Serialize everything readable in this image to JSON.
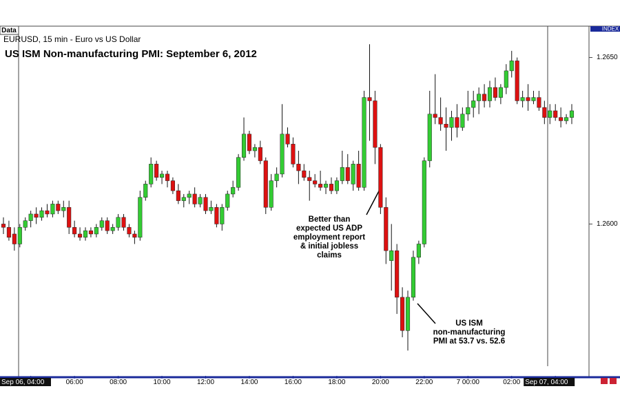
{
  "chart_data": {
    "type": "candlestick",
    "title": "US ISM Non-manufacturing PMI: September 6, 2012",
    "subtitle": "EURUSD, 15 min - Euro vs US Dollar",
    "data_tab": "Data",
    "axis_tab": "INDEX",
    "categories": [
      null,
      null,
      null,
      null,
      null,
      "Sep 06, 04:00",
      null,
      null,
      null,
      null,
      null,
      null,
      null,
      "06:00",
      null,
      null,
      null,
      null,
      null,
      null,
      null,
      "08:00",
      null,
      null,
      null,
      null,
      null,
      null,
      null,
      "10:00",
      null,
      null,
      null,
      null,
      null,
      null,
      null,
      "12:00",
      null,
      null,
      null,
      null,
      null,
      null,
      null,
      "14:00",
      null,
      null,
      null,
      null,
      null,
      null,
      null,
      "16:00",
      null,
      null,
      null,
      null,
      null,
      null,
      null,
      "18:00",
      null,
      null,
      null,
      null,
      null,
      null,
      null,
      "20:00",
      null,
      null,
      null,
      null,
      null,
      null,
      null,
      "22:00",
      null,
      null,
      null,
      null,
      null,
      null,
      null,
      "7 00:00",
      null,
      null,
      null,
      null,
      null,
      null,
      null,
      "02:00",
      null,
      null,
      null,
      null,
      null,
      null,
      null,
      "Sep 07, 04:00",
      null,
      null,
      null
    ],
    "open": [
      1.26,
      1.2599,
      1.2597,
      1.2594,
      1.2599,
      1.2601,
      1.2603,
      1.2602,
      1.2604,
      1.2603,
      1.2606,
      1.2604,
      1.2605,
      1.2599,
      1.2597,
      1.2596,
      1.2598,
      1.2597,
      1.2599,
      1.2601,
      1.2598,
      1.2599,
      1.2602,
      1.2599,
      1.2597,
      1.2596,
      1.2608,
      1.2612,
      1.2618,
      1.2614,
      1.2615,
      1.2613,
      1.261,
      1.2607,
      1.2608,
      1.2609,
      1.2606,
      1.2608,
      1.2604,
      1.2605,
      1.26,
      1.2605,
      1.2609,
      1.2611,
      1.262,
      1.2627,
      1.2622,
      1.2623,
      1.2619,
      1.2605,
      1.2613,
      1.2615,
      1.2627,
      1.2624,
      1.2618,
      1.2616,
      1.2614,
      1.2613,
      1.2612,
      1.2611,
      1.2612,
      1.261,
      1.2613,
      1.2617,
      1.2612,
      1.2618,
      1.2611,
      1.2638,
      1.2637,
      1.2623,
      1.2605,
      1.2589,
      1.2592,
      1.2578,
      1.2568,
      1.2578,
      1.259,
      1.2594,
      1.2619,
      1.2633,
      1.2632,
      1.263,
      1.2629,
      1.2632,
      1.2629,
      1.2633,
      1.2635,
      1.2637,
      1.2639,
      1.2637,
      1.2641,
      1.2638,
      1.2641,
      1.2646,
      1.2649,
      1.2637,
      1.2638,
      1.2637,
      1.2638,
      1.2635,
      1.2632,
      1.2634,
      1.2632,
      1.2631,
      1.2632
    ],
    "high": [
      1.2602,
      1.2601,
      1.2599,
      1.26,
      1.2602,
      1.2604,
      1.2605,
      1.2605,
      1.2606,
      1.2607,
      1.2607,
      1.2607,
      1.2607,
      1.2601,
      1.2599,
      1.2599,
      1.2599,
      1.26,
      1.2602,
      1.2602,
      1.26,
      1.2603,
      1.2603,
      1.26,
      1.2598,
      1.261,
      1.2613,
      1.262,
      1.2619,
      1.2616,
      1.2616,
      1.2614,
      1.2612,
      1.2609,
      1.261,
      1.2611,
      1.2609,
      1.2609,
      1.2607,
      1.2606,
      1.2606,
      1.261,
      1.2613,
      1.2621,
      1.2632,
      1.2628,
      1.2624,
      1.2625,
      1.262,
      1.2615,
      1.2617,
      1.2636,
      1.2629,
      1.2626,
      1.2622,
      1.2618,
      1.2616,
      1.2615,
      1.2616,
      1.2613,
      1.2614,
      1.2614,
      1.2622,
      1.2621,
      1.2619,
      1.2622,
      1.264,
      1.2654,
      1.264,
      1.2624,
      1.2608,
      1.26,
      1.2594,
      1.2581,
      1.258,
      1.2592,
      1.2595,
      1.262,
      1.264,
      1.2645,
      1.2638,
      1.2635,
      1.2634,
      1.2636,
      1.2635,
      1.264,
      1.264,
      1.2641,
      1.2642,
      1.2643,
      1.2644,
      1.2642,
      1.2648,
      1.2652,
      1.265,
      1.264,
      1.2642,
      1.264,
      1.264,
      1.2637,
      1.2636,
      1.2636,
      1.2635,
      1.2633,
      1.2636
    ],
    "low": [
      1.2597,
      1.2595,
      1.2592,
      1.2593,
      1.2598,
      1.2599,
      1.26,
      1.2601,
      1.2602,
      1.2602,
      1.2603,
      1.2602,
      1.2597,
      1.2596,
      1.2595,
      1.2595,
      1.2596,
      1.2596,
      1.2598,
      1.2597,
      1.2597,
      1.2598,
      1.2598,
      1.2596,
      1.2594,
      1.2595,
      1.2607,
      1.2611,
      1.2613,
      1.2612,
      1.2611,
      1.2609,
      1.2606,
      1.2605,
      1.2606,
      1.2605,
      1.2605,
      1.2603,
      1.2603,
      1.2599,
      1.2598,
      1.2604,
      1.2608,
      1.261,
      1.2619,
      1.2621,
      1.262,
      1.2618,
      1.2603,
      1.2604,
      1.2611,
      1.2614,
      1.2623,
      1.2617,
      1.2612,
      1.2613,
      1.2607,
      1.2611,
      1.261,
      1.2609,
      1.2609,
      1.2609,
      1.2612,
      1.2612,
      1.261,
      1.261,
      1.261,
      1.2625,
      1.2618,
      1.2603,
      1.2588,
      1.258,
      1.2573,
      1.2566,
      1.2562,
      1.2577,
      1.2588,
      1.2593,
      1.2617,
      1.263,
      1.2628,
      1.2622,
      1.2625,
      1.2626,
      1.2628,
      1.2631,
      1.2632,
      1.2633,
      1.2635,
      1.2635,
      1.2637,
      1.2636,
      1.2639,
      1.2644,
      1.2636,
      1.2635,
      1.2634,
      1.2636,
      1.2634,
      1.263,
      1.263,
      1.2631,
      1.2629,
      1.263,
      1.263
    ],
    "close": [
      1.2599,
      1.2596,
      1.2594,
      1.2599,
      1.2601,
      1.2603,
      1.2602,
      1.2604,
      1.2603,
      1.2606,
      1.2604,
      1.2605,
      1.2599,
      1.2597,
      1.2596,
      1.2598,
      1.2597,
      1.2599,
      1.2601,
      1.2598,
      1.2599,
      1.2602,
      1.2599,
      1.2597,
      1.2596,
      1.2608,
      1.2612,
      1.2618,
      1.2614,
      1.2615,
      1.2613,
      1.261,
      1.2607,
      1.2608,
      1.2609,
      1.2606,
      1.2608,
      1.2604,
      1.2605,
      1.26,
      1.2605,
      1.2609,
      1.2611,
      1.262,
      1.2627,
      1.2622,
      1.2623,
      1.2619,
      1.2605,
      1.2613,
      1.2615,
      1.2627,
      1.2624,
      1.2618,
      1.2616,
      1.2614,
      1.2613,
      1.2612,
      1.2611,
      1.2612,
      1.261,
      1.2613,
      1.2617,
      1.2613,
      1.2618,
      1.2611,
      1.2638,
      1.2637,
      1.2623,
      1.2605,
      1.2592,
      1.2592,
      1.2578,
      1.2568,
      1.2578,
      1.259,
      1.2594,
      1.2619,
      1.2633,
      1.2632,
      1.263,
      1.2629,
      1.2632,
      1.2629,
      1.2633,
      1.2635,
      1.2637,
      1.2639,
      1.2637,
      1.2641,
      1.2638,
      1.2641,
      1.2646,
      1.2649,
      1.2637,
      1.2638,
      1.2637,
      1.2638,
      1.2635,
      1.2632,
      1.2634,
      1.2632,
      1.2631,
      1.2632,
      1.2634
    ],
    "up_color": "#33cc33",
    "down_color": "#dd1111",
    "ylim": [
      1.2554,
      1.2659
    ],
    "yticks": [
      {
        "value": 1.26,
        "label": "1.2600"
      },
      {
        "value": 1.265,
        "label": "1.2650"
      }
    ],
    "annotations": [
      {
        "lines": [
          "Better than",
          "expected US ADP",
          "employment report",
          "& initial jobless",
          "claims"
        ]
      },
      {
        "lines": [
          "US ISM",
          "non-manufacturing",
          "PMI at 53.7 vs. 52.6"
        ]
      }
    ]
  }
}
